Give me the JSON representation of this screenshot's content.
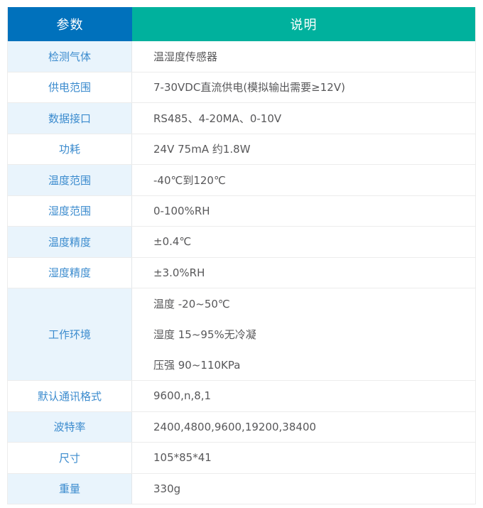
{
  "table": {
    "header": {
      "param": "参数",
      "desc": "说明"
    },
    "rows": [
      {
        "param": "检测气体",
        "desc": "温湿度传感器"
      },
      {
        "param": "供电范围",
        "desc": "7-30VDC直流供电(模拟输出需要≥12V)"
      },
      {
        "param": "数据接口",
        "desc": "RS485、4-20MA、0-10V"
      },
      {
        "param": "功耗",
        "desc": "24V 75mA 约1.8W"
      },
      {
        "param": "温度范围",
        "desc": "-40℃到120℃"
      },
      {
        "param": "湿度范围",
        "desc": "0-100%RH"
      },
      {
        "param": "温度精度",
        "desc": "±0.4℃"
      },
      {
        "param": "湿度精度",
        "desc": "±3.0%RH"
      },
      {
        "param": "工作环境",
        "desc_lines": [
          "温度 -20~50℃",
          "湿度 15~95%无冷凝",
          "压强 90~110KPa"
        ]
      },
      {
        "param": "默认通讯格式",
        "desc": "9600,n,8,1"
      },
      {
        "param": "波特率",
        "desc": "2400,4800,9600,19200,38400"
      },
      {
        "param": "尺寸",
        "desc": "105*85*41"
      },
      {
        "param": "重量",
        "desc": "330g"
      }
    ],
    "colors": {
      "header_param_bg": "#0071bc",
      "header_desc_bg": "#00b19d",
      "header_text": "#ffffff",
      "row_alt_bg": "#e9f4fc",
      "param_text": "#3b8bce",
      "desc_text": "#58585a",
      "border": "#ececec",
      "divider": "#e3e7ea"
    }
  }
}
